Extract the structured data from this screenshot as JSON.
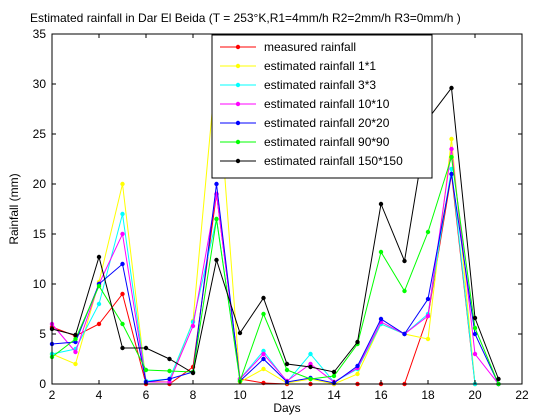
{
  "chart_data": {
    "type": "line",
    "title": "Estimated rainfall in Dar El Beida (T = 253°K,R1=4mm/h  R2=2mm/h  R3=0mm/h )",
    "xlabel": "Days",
    "ylabel": "Rainfall (mm)",
    "xlim": [
      2,
      22
    ],
    "ylim": [
      0,
      35
    ],
    "xticks": [
      2,
      4,
      6,
      8,
      10,
      12,
      14,
      16,
      18,
      20,
      22
    ],
    "yticks": [
      0,
      5,
      10,
      15,
      20,
      25,
      30,
      35
    ],
    "legend_position": "top-right",
    "grid": false,
    "x": [
      2,
      3,
      4,
      5,
      6,
      7,
      8,
      9,
      10,
      11,
      12,
      13,
      14,
      15,
      16,
      17,
      18,
      19,
      20,
      21
    ],
    "series": [
      {
        "name": "measured rainfall",
        "color": "#ff0000",
        "values": [
          5.7,
          4.8,
          6.0,
          9.0,
          0.0,
          0.0,
          1.7,
          19.0,
          0.5,
          0.1,
          0.0,
          0.0,
          0.0,
          0.0,
          0.0,
          0.0,
          6.8,
          21.0,
          0.0,
          0.0
        ]
      },
      {
        "name": "estimated rainfall 1*1",
        "color": "#ffff00",
        "values": [
          3.0,
          2.0,
          10.2,
          20.0,
          0.3,
          0.2,
          6.3,
          32.0,
          0.2,
          1.5,
          0.1,
          0.5,
          0.0,
          1.0,
          6.0,
          5.0,
          4.5,
          24.5,
          0.0,
          0.0
        ]
      },
      {
        "name": "estimated rainfall 3*3",
        "color": "#00ffff",
        "values": [
          3.0,
          3.5,
          8.0,
          17.0,
          0.3,
          0.5,
          6.2,
          16.5,
          0.5,
          3.3,
          0.2,
          3.0,
          0.2,
          1.5,
          6.0,
          5.0,
          7.0,
          21.5,
          0.0,
          0.0
        ]
      },
      {
        "name": "estimated rainfall 10*10",
        "color": "#ff00ff",
        "values": [
          6.0,
          3.2,
          10.0,
          15.0,
          0.2,
          0.2,
          5.8,
          19.0,
          0.5,
          3.0,
          0.3,
          2.0,
          0.2,
          1.6,
          6.2,
          5.0,
          6.8,
          23.5,
          3.0,
          0.0
        ]
      },
      {
        "name": "estimated rainfall 20*20",
        "color": "#0000ff",
        "values": [
          4.0,
          4.2,
          10.0,
          12.0,
          0.2,
          0.5,
          1.2,
          20.0,
          0.3,
          2.5,
          0.2,
          0.6,
          0.1,
          1.8,
          6.5,
          5.0,
          8.5,
          21.0,
          5.0,
          0.0
        ]
      },
      {
        "name": "estimated rainfall 90*90",
        "color": "#00ff00",
        "values": [
          2.7,
          4.5,
          9.8,
          6.0,
          1.4,
          1.3,
          1.2,
          16.5,
          0.3,
          7.0,
          1.4,
          0.5,
          0.8,
          4.0,
          13.2,
          9.3,
          15.2,
          22.7,
          5.6,
          0.0
        ]
      },
      {
        "name": "estimated rainfall 150*150",
        "color": "#000000",
        "values": [
          5.5,
          4.9,
          12.7,
          3.6,
          3.6,
          2.5,
          1.1,
          12.4,
          5.1,
          8.6,
          2.0,
          1.7,
          1.2,
          4.2,
          18.0,
          12.3,
          26.5,
          29.6,
          6.6,
          0.5
        ]
      }
    ]
  }
}
